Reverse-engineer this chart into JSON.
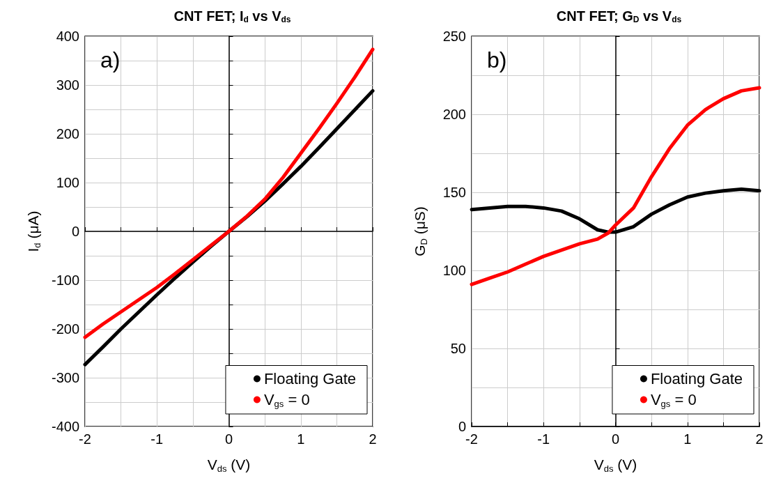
{
  "chart_data": [
    {
      "type": "line",
      "title": "CNT FET; I$_{d}$ vs V$_{ds}$",
      "xlabel": "V$_{ds}$ (V)",
      "ylabel": "I$_{d}$ (μA)",
      "annotations": [
        "a)"
      ],
      "xlim": [
        -2,
        2
      ],
      "xticks": [
        -2,
        -1,
        0,
        1,
        2
      ],
      "ylim": [
        -400,
        400
      ],
      "yticks": [
        -400,
        -300,
        -200,
        -100,
        0,
        100,
        200,
        300,
        400
      ],
      "grid": true,
      "legend": "bottom right",
      "marker": "none",
      "line_style": "solid",
      "series": [
        {
          "name": "Floating Gate",
          "color": "#000000",
          "x": [
            -2,
            -1.75,
            -1.5,
            -1.25,
            -1,
            -0.75,
            -0.5,
            -0.25,
            0,
            0.25,
            0.5,
            0.75,
            1,
            1.25,
            1.5,
            1.75,
            2
          ],
          "values": [
            -273,
            -237,
            -200,
            -165,
            -130,
            -96,
            -63,
            -31,
            0,
            30,
            62,
            97,
            133,
            171,
            210,
            249,
            288
          ]
        },
        {
          "name": "V$_{gs}$ = 0",
          "color": "#ff0000",
          "x": [
            -2,
            -1.75,
            -1.5,
            -1.25,
            -1,
            -0.75,
            -0.5,
            -0.25,
            0,
            0.25,
            0.5,
            0.75,
            1,
            1.25,
            1.5,
            1.75,
            2
          ],
          "values": [
            -217,
            -190,
            -165,
            -140,
            -115,
            -87,
            -58,
            -29,
            0,
            31,
            66,
            110,
            160,
            210,
            262,
            316,
            373
          ]
        }
      ]
    },
    {
      "type": "line",
      "title": "CNT FET; G$_{D}$ vs V$_{ds}$",
      "xlabel": "V$_{ds}$ (V)",
      "ylabel": "G$_{D}$ (μS)",
      "annotations": [
        "b)"
      ],
      "xlim": [
        -2,
        2
      ],
      "xticks": [
        -2,
        -1,
        0,
        1,
        2
      ],
      "ylim": [
        0,
        250
      ],
      "yticks": [
        0,
        50,
        100,
        150,
        200,
        250
      ],
      "grid": true,
      "legend": "bottom right",
      "marker": "none",
      "line_style": "solid",
      "series": [
        {
          "name": "Floating Gate",
          "color": "#000000",
          "x": [
            -2,
            -1.75,
            -1.5,
            -1.25,
            -1,
            -0.75,
            -0.5,
            -0.25,
            -0.1,
            0,
            0.25,
            0.5,
            0.75,
            1,
            1.25,
            1.5,
            1.75,
            2
          ],
          "values": [
            139,
            140,
            141,
            141,
            140,
            138,
            133,
            126,
            124.5,
            124.5,
            128,
            136,
            142,
            147,
            149.5,
            151,
            152,
            151
          ]
        },
        {
          "name": "V$_{gs}$ = 0",
          "color": "#ff0000",
          "x": [
            -2,
            -1.75,
            -1.5,
            -1.25,
            -1,
            -0.75,
            -0.5,
            -0.25,
            -0.1,
            0,
            0.25,
            0.5,
            0.75,
            1,
            1.25,
            1.5,
            1.75,
            2
          ],
          "values": [
            91,
            95,
            99,
            104,
            109,
            113,
            117,
            120,
            124,
            129,
            140,
            160,
            178,
            193,
            203,
            210,
            215,
            217
          ]
        }
      ]
    }
  ]
}
